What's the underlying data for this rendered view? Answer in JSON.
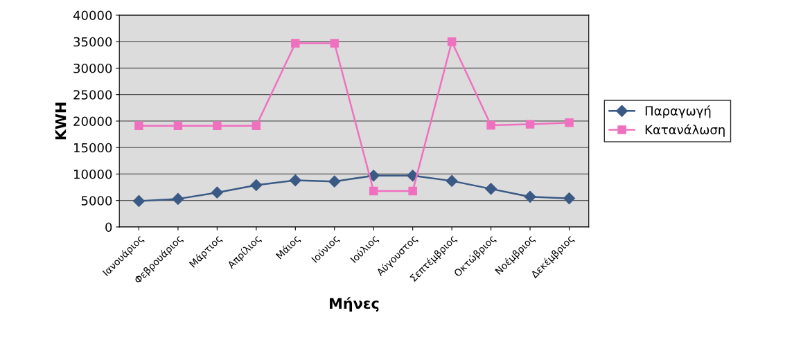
{
  "chart_data": {
    "type": "line",
    "xlabel": "Μήνες",
    "ylabel": "KWH",
    "categories": [
      "Ιανουάριος",
      "Φεβρουάριος",
      "Μάρτιος",
      "Απρίλιος",
      "Μάιος",
      "Ιούνιος",
      "Ιούλιος",
      "Αύγουστος",
      "Σεπτέμβριος",
      "Οκτώβριος",
      "Νοέμβριος",
      "Δεκέμβριος"
    ],
    "series": [
      {
        "name": "Παραγωγή",
        "color": "#3a5a85",
        "marker": "diamond",
        "values": [
          4900,
          5300,
          6500,
          7900,
          8800,
          8600,
          9700,
          9700,
          8700,
          7200,
          5700,
          5400
        ]
      },
      {
        "name": "Κατανάλωση",
        "color": "#f070c0",
        "marker": "square",
        "values": [
          19100,
          19100,
          19100,
          19100,
          34700,
          34700,
          6800,
          6800,
          35000,
          19200,
          19400,
          19700
        ]
      }
    ],
    "ylim": [
      0,
      40000
    ],
    "yticks": [
      0,
      5000,
      10000,
      15000,
      20000,
      25000,
      30000,
      35000,
      40000
    ],
    "grid": "y",
    "legend": "right",
    "line_style": "solid"
  }
}
